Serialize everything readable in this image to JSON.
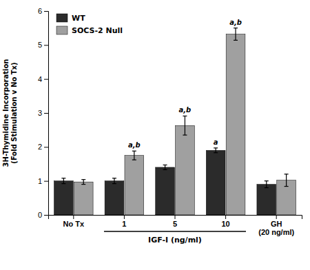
{
  "chart_data": {
    "type": "bar",
    "categories": [
      "No Tx",
      "1",
      "5",
      "10",
      "GH\n(20 ng/ml)"
    ],
    "series": [
      {
        "name": "WT",
        "color": "#2b2b2b",
        "values": [
          1.0,
          1.0,
          1.4,
          1.9,
          0.9
        ],
        "errors": [
          0.08,
          0.08,
          0.07,
          0.07,
          0.1
        ],
        "annotations": [
          null,
          null,
          null,
          "a",
          null
        ]
      },
      {
        "name": "SOCS-2 Null",
        "color": "#a0a0a0",
        "values": [
          0.97,
          1.75,
          2.63,
          5.32,
          1.02
        ],
        "errors": [
          0.07,
          0.13,
          0.28,
          0.18,
          0.18
        ],
        "annotations": [
          null,
          "a,b",
          "a,b",
          "a,b",
          null
        ]
      }
    ],
    "ylabel": "3H-Thymidine Incorporation\n(Fold Stimulation v No Tx)",
    "ylim": [
      0,
      6
    ],
    "yticks": [
      0,
      1,
      2,
      3,
      4,
      5,
      6
    ],
    "legend": "upper left",
    "group_label": {
      "text": "IGF-I (ng/ml)",
      "from": "1",
      "to": "10"
    }
  }
}
